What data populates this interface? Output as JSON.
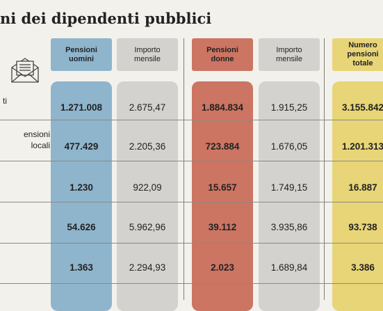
{
  "title": "ni dei dipendenti pubblici",
  "colors": {
    "uomini": "#8fb5cd",
    "importo": "#d3d2ce",
    "donne": "#cc7563",
    "totale": "#e8d577"
  },
  "icon": "envelope-document-icon",
  "headers": {
    "uomini": "Pensioni\nuomini",
    "importo1": "Importo\nmensile",
    "donne": "Pensioni\ndonne",
    "importo2": "Importo\nmensile",
    "totale": "Numero\npensioni\ntotale"
  },
  "rows": [
    {
      "label": "ti",
      "uomini": "1.271.008",
      "importo1": "2.675,47",
      "donne": "1.884.834",
      "importo2": "1.915,25",
      "totale": "3.155.842"
    },
    {
      "label": "ensioni\nlocali",
      "uomini": "477.429",
      "importo1": "2.205,36",
      "donne": "723.884",
      "importo2": "1.676,05",
      "totale": "1.201.313"
    },
    {
      "label": "",
      "uomini": "1.230",
      "importo1": "922,09",
      "donne": "15.657",
      "importo2": "1.749,15",
      "totale": "16.887"
    },
    {
      "label": "",
      "uomini": "54.626",
      "importo1": "5.962,96",
      "donne": "39.112",
      "importo2": "3.935,86",
      "totale": "93.738"
    },
    {
      "label": "",
      "uomini": "1.363",
      "importo1": "2.294,93",
      "donne": "2.023",
      "importo2": "1.689,84",
      "totale": "3.386"
    }
  ]
}
